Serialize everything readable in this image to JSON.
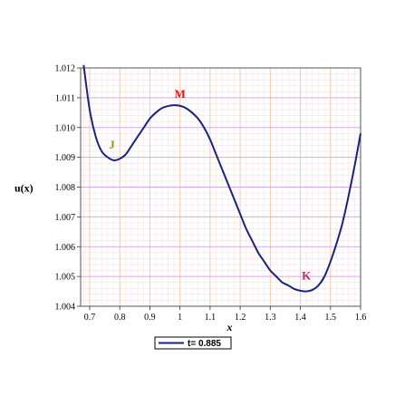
{
  "chart_data": {
    "type": "line",
    "title": "",
    "xlabel": "x",
    "ylabel": "u(x)",
    "xlim": [
      0.67,
      1.6
    ],
    "ylim": [
      1.004,
      1.012
    ],
    "xticks": [
      0.7,
      0.8,
      0.9,
      1.0,
      1.1,
      1.2,
      1.3,
      1.4,
      1.5,
      1.6
    ],
    "xtick_labels": [
      "0.7",
      "0.8",
      "0.9",
      "1",
      "1.1",
      "1.2",
      "1.3",
      "1.4",
      "1.5",
      "1.6"
    ],
    "yticks": [
      1.004,
      1.005,
      1.006,
      1.007,
      1.008,
      1.009,
      1.01,
      1.011,
      1.012
    ],
    "ytick_labels": [
      "1.004",
      "1.005",
      "1.006",
      "1.007",
      "1.008",
      "1.009",
      "1.010",
      "1.011",
      "1.012"
    ],
    "grid": true,
    "legend_position": "bottom-left",
    "series": [
      {
        "name": "t= 0.885",
        "color": "#1a237e",
        "x": [
          0.68,
          0.7,
          0.72,
          0.74,
          0.76,
          0.78,
          0.8,
          0.82,
          0.84,
          0.86,
          0.88,
          0.9,
          0.92,
          0.94,
          0.96,
          0.98,
          1.0,
          1.02,
          1.04,
          1.06,
          1.08,
          1.1,
          1.12,
          1.14,
          1.16,
          1.18,
          1.2,
          1.22,
          1.24,
          1.26,
          1.28,
          1.3,
          1.32,
          1.34,
          1.36,
          1.38,
          1.4,
          1.42,
          1.44,
          1.46,
          1.48,
          1.5,
          1.52,
          1.54,
          1.56,
          1.58,
          1.6
        ],
        "y": [
          1.0121,
          1.0106,
          1.0097,
          1.0092,
          1.009,
          1.0089,
          1.00895,
          1.0091,
          1.0094,
          1.0097,
          1.01,
          1.0103,
          1.0105,
          1.01065,
          1.01072,
          1.01075,
          1.01073,
          1.01065,
          1.0105,
          1.0103,
          1.01,
          1.0096,
          1.0091,
          1.0086,
          1.0081,
          1.0076,
          1.0071,
          1.0066,
          1.0062,
          1.0058,
          1.0055,
          1.0052,
          1.005,
          1.0048,
          1.0047,
          1.00458,
          1.00452,
          1.0045,
          1.00455,
          1.0047,
          1.005,
          1.0055,
          1.0061,
          1.0068,
          1.0077,
          1.0087,
          1.0098
        ]
      }
    ],
    "annotations": [
      {
        "text": "J",
        "x": 0.78,
        "y": 1.0093,
        "color": "#999900"
      },
      {
        "text": "M",
        "x": 1.0,
        "y": 1.011,
        "color": "#ee1111"
      },
      {
        "text": "K",
        "x": 1.42,
        "y": 1.0049,
        "color": "#aa3366"
      }
    ]
  }
}
